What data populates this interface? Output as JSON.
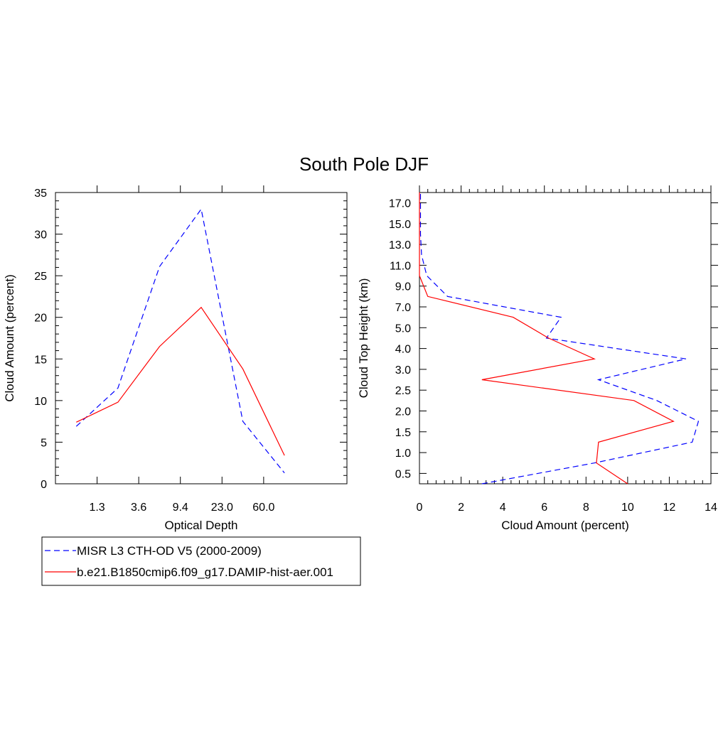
{
  "title": "South Pole DJF",
  "legend": [
    {
      "label": "MISR L3 CTH-OD V5 (2000-2009)",
      "color": "#0000ff",
      "dash": true
    },
    {
      "label": "b.e21.B1850cmip6.f09_g17.DAMIP-hist-aer.001",
      "color": "#ff0000",
      "dash": false
    }
  ],
  "chart_data": [
    {
      "type": "line",
      "xlabel": "Optical Depth",
      "ylabel": "Cloud Amount (percent)",
      "x_tick_labels": [
        "1.3",
        "3.6",
        "9.4",
        "23.0",
        "60.0"
      ],
      "y_ticks": [
        "0",
        "5",
        "10",
        "15",
        "20",
        "25",
        "30",
        "35"
      ],
      "ylim": [
        0,
        35
      ],
      "x_bins": 7,
      "series": [
        {
          "name": "MISR L3 CTH-OD V5 (2000-2009)",
          "color": "#0000ff",
          "dash": true,
          "values": [
            6.9,
            11.5,
            26.1,
            33.0,
            7.5,
            1.3
          ]
        },
        {
          "name": "b.e21.B1850cmip6.f09_g17.DAMIP-hist-aer.001",
          "color": "#ff0000",
          "dash": false,
          "values": [
            7.4,
            9.8,
            16.5,
            21.2,
            13.8,
            3.4
          ]
        }
      ]
    },
    {
      "type": "line",
      "xlabel": "Cloud Amount (percent)",
      "ylabel": "Cloud Top Height (km)",
      "x_ticks": [
        "0",
        "2",
        "4",
        "6",
        "8",
        "10",
        "12",
        "14"
      ],
      "xlim": [
        0,
        14
      ],
      "y_tick_labels": [
        "0.5",
        "1.0",
        "1.5",
        "2.0",
        "2.5",
        "3.0",
        "4.0",
        "5.0",
        "7.0",
        "9.0",
        "11.0",
        "13.0",
        "15.0",
        "17.0"
      ],
      "series": [
        {
          "name": "MISR L3 CTH-OD V5 (2000-2009)",
          "color": "#0000ff",
          "dash": true,
          "values": [
            3.0,
            8.4,
            13.1,
            13.4,
            11.4,
            8.6,
            12.8,
            6.1,
            6.8,
            1.35,
            0.35,
            0.1,
            0.05,
            0.05,
            0.05
          ]
        },
        {
          "name": "b.e21.B1850cmip6.f09_g17.DAMIP-hist-aer.001",
          "color": "#ff0000",
          "dash": false,
          "values": [
            10.0,
            8.5,
            8.6,
            12.2,
            10.3,
            3.0,
            8.4,
            6.2,
            4.5,
            0.4,
            0.0,
            0.0,
            0.0,
            0.0,
            0.0
          ]
        }
      ]
    }
  ]
}
